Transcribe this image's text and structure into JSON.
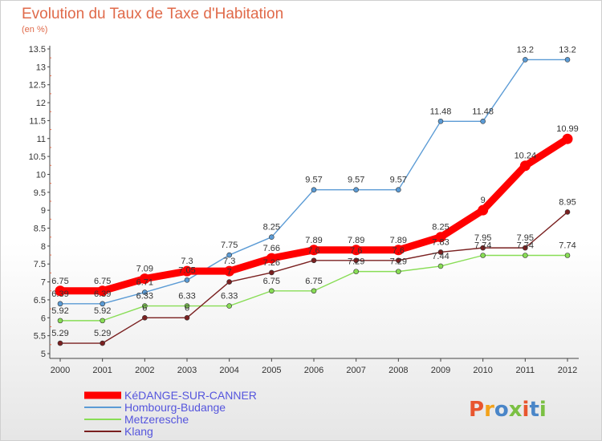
{
  "title": "Evolution du Taux de Taxe d'Habitation",
  "subtitle": "(en %)",
  "logo": {
    "text": "Proxiti",
    "colors": [
      "#e8562f",
      "#f3a21b",
      "#4a86c8",
      "#7bc043",
      "#e8562f",
      "#4a86c8",
      "#7bc043"
    ]
  },
  "chart_data": {
    "type": "line",
    "x": [
      2000,
      2001,
      2002,
      2003,
      2004,
      2005,
      2006,
      2007,
      2008,
      2009,
      2010,
      2011,
      2012
    ],
    "ylim": [
      5,
      13.5
    ],
    "yticks": [
      5,
      5.5,
      6,
      6.5,
      7,
      7.5,
      8,
      8.5,
      9,
      9.5,
      10,
      10.5,
      11,
      11.5,
      12,
      12.5,
      13,
      13.5
    ],
    "grid": false,
    "legend_position": "bottom-left",
    "series": [
      {
        "name": "KéDANGE-SUR-CANNER",
        "color": "#ff0000",
        "values": [
          6.75,
          6.75,
          7.09,
          7.3,
          7.3,
          7.66,
          7.89,
          7.89,
          7.89,
          8.25,
          9,
          10.24,
          10.99
        ]
      },
      {
        "name": "Hombourg-Budange",
        "color": "#5b9bd5",
        "values": [
          6.39,
          6.39,
          6.71,
          7.05,
          7.75,
          8.25,
          9.57,
          9.57,
          9.57,
          11.48,
          11.48,
          13.2,
          13.2
        ]
      },
      {
        "name": "Metzeresche",
        "color": "#88dd55",
        "values": [
          5.92,
          5.92,
          6.33,
          6.33,
          6.33,
          6.75,
          6.75,
          7.29,
          7.29,
          7.44,
          7.74,
          7.74,
          7.74
        ]
      },
      {
        "name": "Klang",
        "color": "#7a2020",
        "values": [
          5.29,
          5.29,
          6,
          6,
          7,
          7.26,
          7.6,
          7.6,
          7.6,
          7.83,
          7.95,
          7.95,
          8.95
        ]
      }
    ]
  }
}
